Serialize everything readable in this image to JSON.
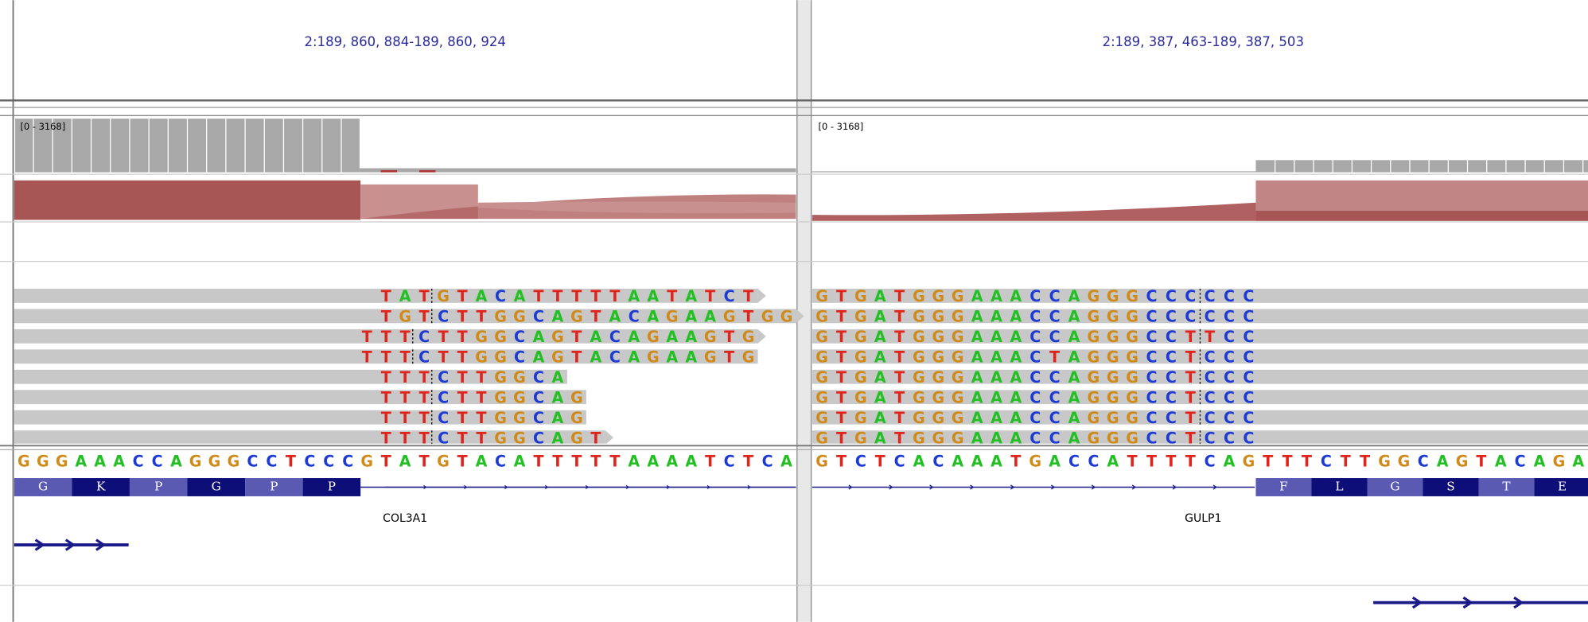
{
  "loci": [
    {
      "locus": "2:189, 860, 884-189, 860, 924",
      "coverage_range": "[0 - 3168]",
      "reference": "GGGAAACCAGGGCCTCCCGTATGTACATTTTTAAAATCTCA",
      "reads": [
        "TATGTACATTTTTAATATCT",
        "TGTCTTGGCAGTACAGAAGTGG",
        "TTTCTTGGCAGTACAGAAGTG",
        "TTTCTTGGCAGTACAGAAGTG",
        "TTTCTTGGCA",
        "TTTCTTGGCAG",
        "TTTCTTGGCAG",
        "TTTCTTGGCAGT"
      ],
      "amino_acids": [
        "G",
        "K",
        "P",
        "G",
        "P",
        "P"
      ],
      "gene": "COL3A1"
    },
    {
      "locus": "2:189, 387, 463-189, 387, 503",
      "coverage_range": "[0 - 3168]",
      "reference": "GTCTCACAAATGACCATTTTCAGTTTCTTGGCAGTACAGA",
      "reads": [
        "GTGATGGGAAACCAGGGCCCCCC",
        "GTGATGGGAAACCAGGGCCCCCC",
        "GTGATGGGAAACCAGGGCCTTCC",
        "GTGATGGGAAACTAGGGCCTCCC",
        "GTGATGGGAAACCAGGGCCTCCC",
        "GTGATGGGAAACCAGGGCCTCCC",
        "GTGATGGGAAACCAGGGCCTCCC",
        "GTGATGGGAAACCAGGGCCTCCC"
      ],
      "amino_acids": [
        "F",
        "L",
        "G",
        "S",
        "T",
        "E"
      ],
      "gene": "GULP1"
    }
  ]
}
